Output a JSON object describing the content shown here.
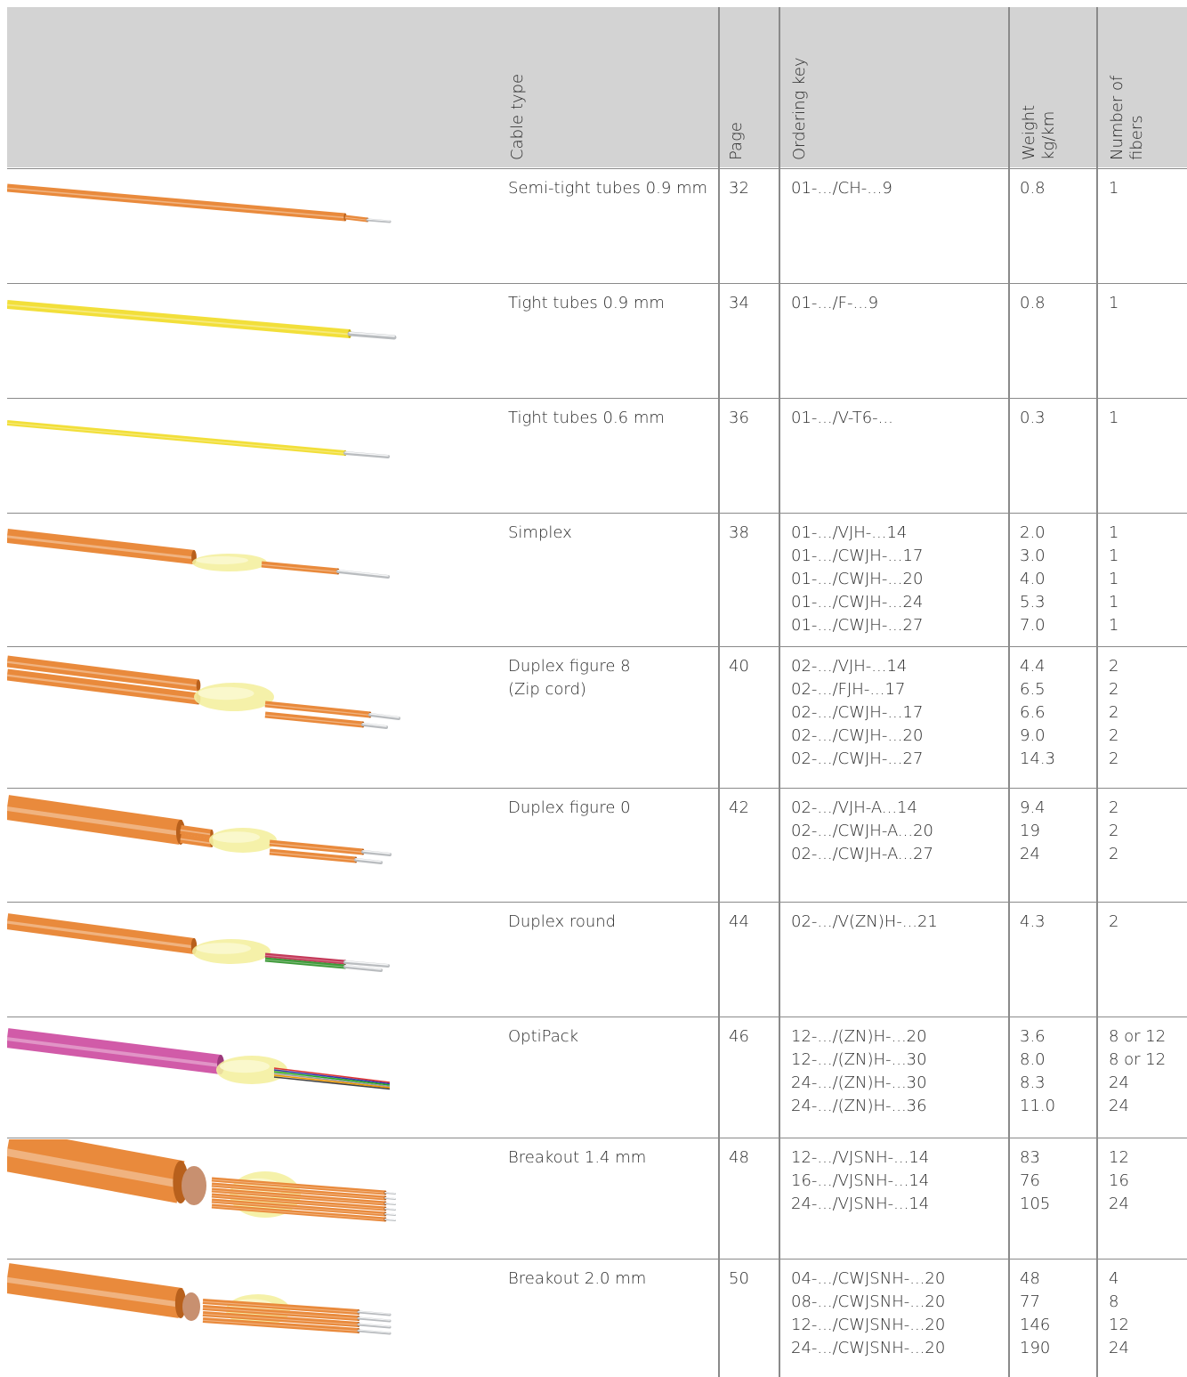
{
  "headers": {
    "cable_type": "Cable type",
    "page": "Page",
    "ordering_key": "Ordering key",
    "weight_1": "Weight",
    "weight_2": "kg/km",
    "fibers_1": "Number of",
    "fibers_2": "fibers"
  },
  "rows": [
    {
      "type": [
        "Semi-tight tubes 0.9 mm"
      ],
      "page": "32",
      "keys": [
        "01-.../CH-...9"
      ],
      "weights": [
        "0.8"
      ],
      "fibers": [
        "1"
      ],
      "cable": "semitight"
    },
    {
      "type": [
        "Tight tubes 0.9 mm"
      ],
      "page": "34",
      "keys": [
        "01-.../F-...9"
      ],
      "weights": [
        "0.8"
      ],
      "fibers": [
        "1"
      ],
      "cable": "tight09"
    },
    {
      "type": [
        "Tight tubes 0.6 mm"
      ],
      "page": "36",
      "keys": [
        "01-.../V-T6-..."
      ],
      "weights": [
        "0.3"
      ],
      "fibers": [
        "1"
      ],
      "cable": "tight06"
    },
    {
      "type": [
        "Simplex"
      ],
      "page": "38",
      "keys": [
        "01-.../VJH-...14",
        "01-.../CWJH-...17",
        "01-.../CWJH-...20",
        "01-.../CWJH-...24",
        "01-.../CWJH-...27"
      ],
      "weights": [
        "2.0",
        "3.0",
        "4.0",
        "5.3",
        "7.0"
      ],
      "fibers": [
        "1",
        "1",
        "1",
        "1",
        "1"
      ],
      "cable": "simplex"
    },
    {
      "type": [
        "Duplex figure 8",
        "(Zip cord)"
      ],
      "page": "40",
      "keys": [
        "02-.../VJH-...14",
        "02-.../FJH-...17",
        "02-.../CWJH-...17",
        "02-.../CWJH-...20",
        "02-.../CWJH-...27"
      ],
      "weights": [
        "4.4",
        "6.5",
        "6.6",
        "9.0",
        "14.3"
      ],
      "fibers": [
        "2",
        "2",
        "2",
        "2",
        "2"
      ],
      "cable": "duplex8"
    },
    {
      "type": [
        "Duplex figure 0"
      ],
      "page": "42",
      "keys": [
        "02-.../VJH-A...14",
        "02-.../CWJH-A...20",
        "02-.../CWJH-A...27"
      ],
      "weights": [
        "9.4",
        "19",
        "24"
      ],
      "fibers": [
        "2",
        "2",
        "2"
      ],
      "cable": "duplex0"
    },
    {
      "type": [
        "Duplex round"
      ],
      "page": "44",
      "keys": [
        "02-.../V(ZN)H-...21"
      ],
      "weights": [
        "4.3"
      ],
      "fibers": [
        "2"
      ],
      "cable": "duplexround"
    },
    {
      "type": [
        "OptiPack"
      ],
      "page": "46",
      "keys": [
        "12-.../(ZN)H-...20",
        "12-.../(ZN)H-...30",
        "24-.../(ZN)H-...30",
        "24-.../(ZN)H-...36"
      ],
      "weights": [
        "3.6",
        "8.0",
        "8.3",
        "11.0"
      ],
      "fibers": [
        "8 or 12",
        "8 or 12",
        "24",
        "24"
      ],
      "cable": "optipack"
    },
    {
      "type": [
        "Breakout 1.4 mm"
      ],
      "page": "48",
      "keys": [
        "12-.../VJSNH-...14",
        "16-.../VJSNH-...14",
        "24-.../VJSNH-...14"
      ],
      "weights": [
        "83",
        "76",
        "105"
      ],
      "fibers": [
        "12",
        "16",
        "24"
      ],
      "cable": "breakout14"
    },
    {
      "type": [
        "Breakout 2.0 mm"
      ],
      "page": "50",
      "keys": [
        "04-.../CWJSNH-...20",
        "08-.../CWJSNH-...20",
        "12-.../CWJSNH-...20",
        "24-.../CWJSNH-...20"
      ],
      "weights": [
        "48",
        "77",
        "146",
        "190"
      ],
      "fibers": [
        "4",
        "8",
        "12",
        "24"
      ],
      "cable": "breakout20"
    }
  ],
  "colors": {
    "orange": "#e98a3c",
    "yellow": "#f2df3a",
    "magenta": "#d15ba8",
    "header_bg": "#d3d3d3"
  }
}
